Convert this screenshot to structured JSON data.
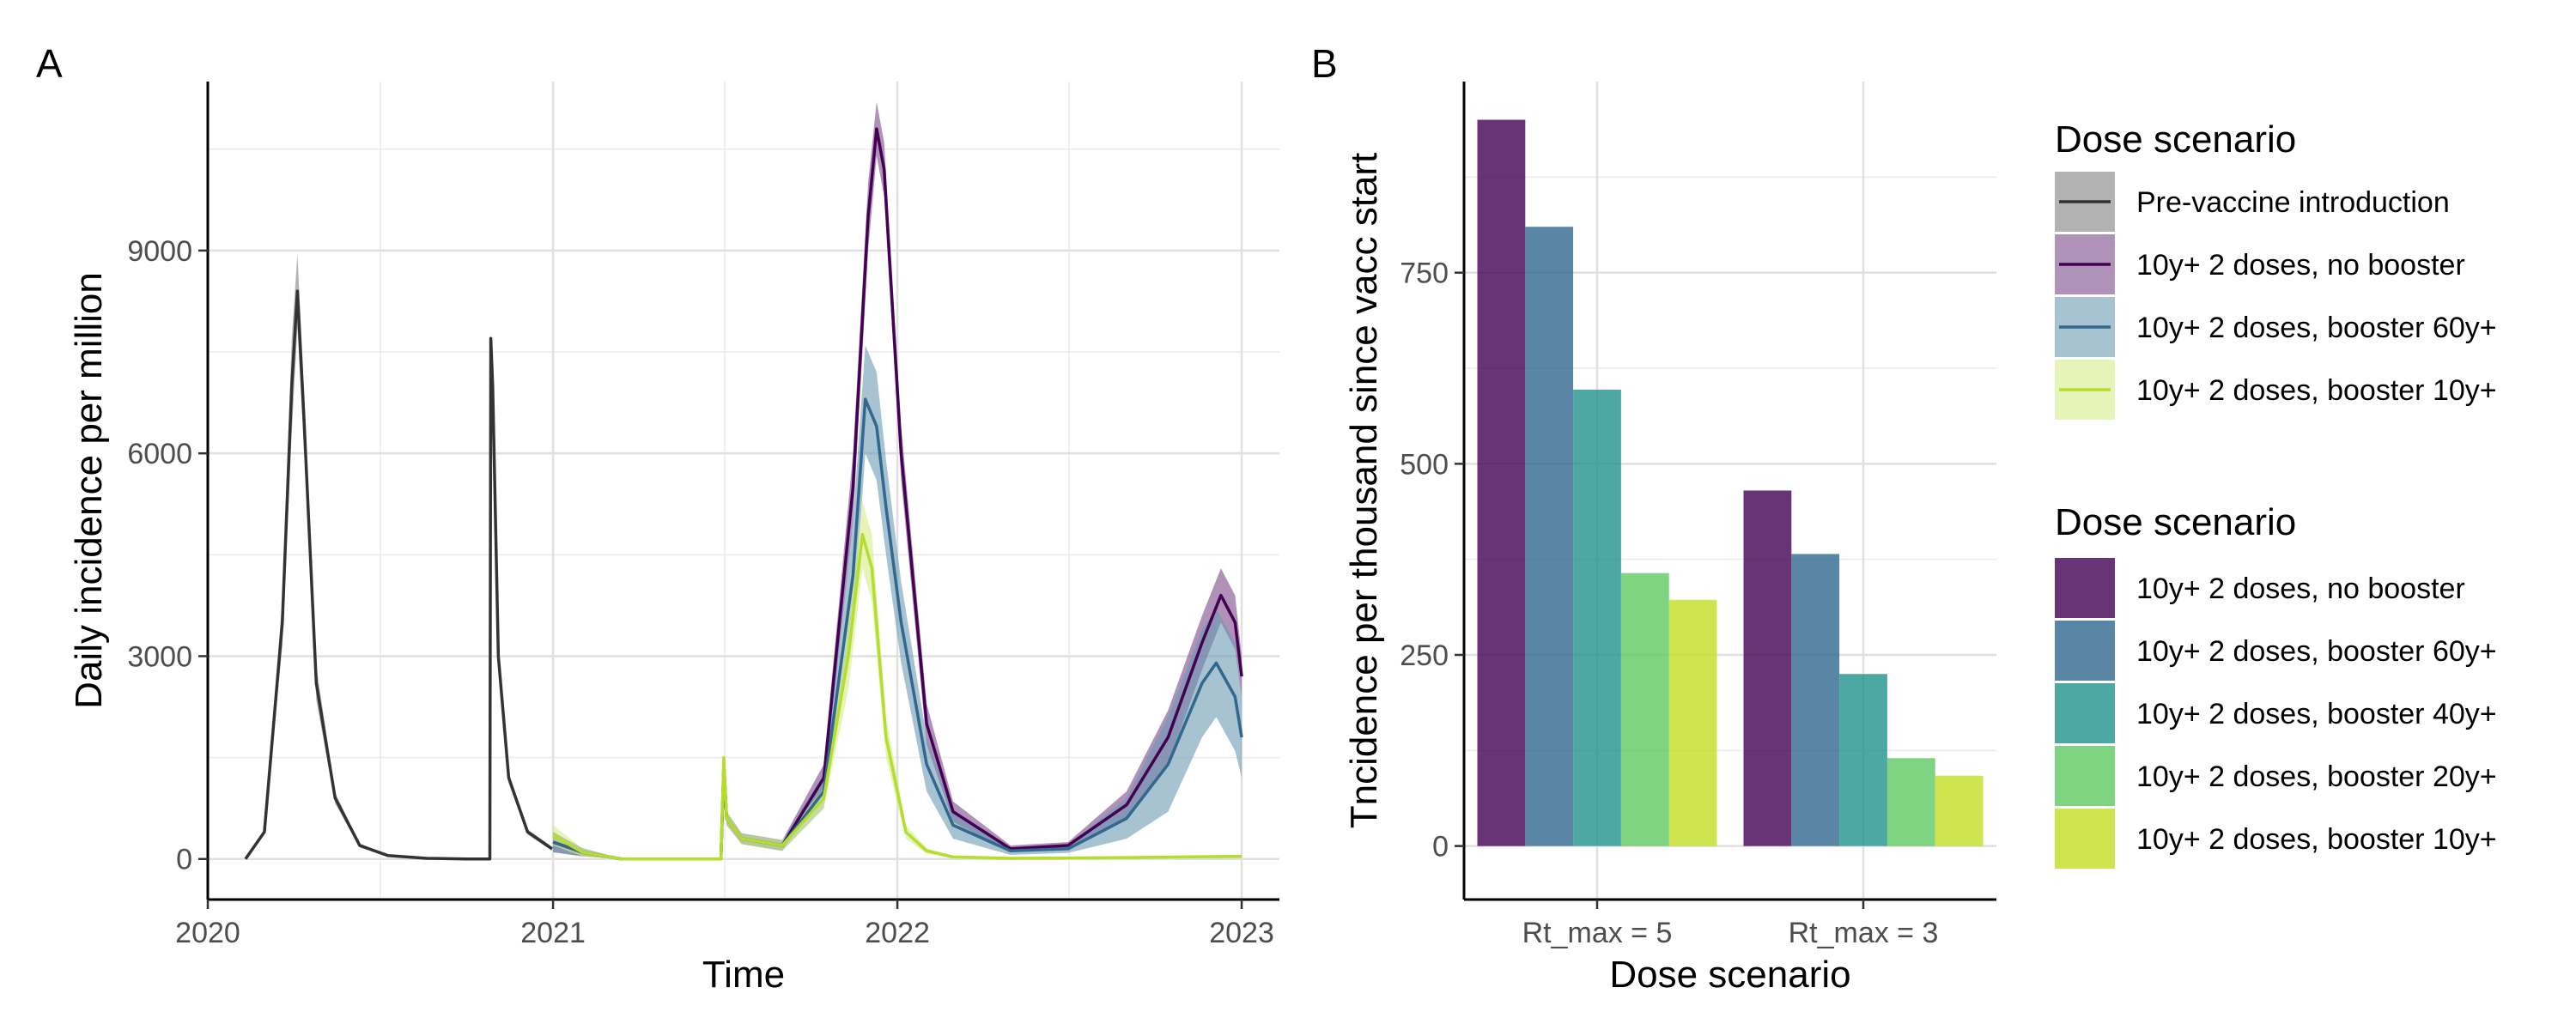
{
  "chart_data": [
    {
      "panel": "A",
      "type": "line",
      "xlabel": "Time",
      "ylabel": "Daily incidence per million",
      "xlim": [
        "2020-01-01",
        "2023-02-10"
      ],
      "ylim": [
        -600,
        11500
      ],
      "x_ticks": [
        "2020",
        "2021",
        "2022",
        "2023"
      ],
      "y_ticks": [
        0,
        3000,
        6000,
        9000
      ],
      "grid": true,
      "legend": {
        "title": "Dose scenario",
        "placement": "right",
        "entries": [
          "Pre-vaccine introduction",
          "10y+ 2 doses, no booster",
          "10y+ 2 doses, booster 60y+",
          "10y+ 2 doses, booster 10y+"
        ]
      },
      "series": [
        {
          "name": "Pre-vaccine introduction",
          "color": "#333333",
          "band_color": "#808080",
          "x": [
            "2020-02-10",
            "2020-03-01",
            "2020-03-20",
            "2020-03-30",
            "2020-04-05",
            "2020-04-12",
            "2020-04-25",
            "2020-05-15",
            "2020-06-10",
            "2020-07-10",
            "2020-08-20",
            "2020-10-01",
            "2020-10-26",
            "2020-10-27",
            "2020-10-29",
            "2020-11-04",
            "2020-11-15",
            "2020-12-05",
            "2020-12-31"
          ],
          "y": [
            0,
            400,
            3500,
            7000,
            8400,
            6500,
            2600,
            900,
            200,
            50,
            10,
            0,
            0,
            7700,
            7000,
            3000,
            1200,
            400,
            150
          ],
          "band": [
            0,
            0,
            350,
            700,
            550,
            450,
            250,
            80,
            30,
            10,
            0,
            0,
            0,
            100,
            200,
            200,
            80,
            40,
            30
          ]
        },
        {
          "name": "10y+ 2 doses, no booster",
          "color": "#440154",
          "band_color": "#7b4a8b",
          "x": [
            "2021-01-01",
            "2021-02-01",
            "2021-03-15",
            "2021-06-28",
            "2021-07-01",
            "2021-07-04",
            "2021-07-20",
            "2021-09-01",
            "2021-10-15",
            "2021-11-15",
            "2021-12-01",
            "2021-12-10",
            "2021-12-18",
            "2022-01-05",
            "2022-02-01",
            "2022-03-01",
            "2022-05-01",
            "2022-07-01",
            "2022-09-01",
            "2022-10-15",
            "2022-11-20",
            "2022-12-10",
            "2022-12-25",
            "2023-01-01"
          ],
          "y": [
            250,
            100,
            0,
            0,
            1400,
            600,
            300,
            200,
            1200,
            5500,
            9500,
            10800,
            10200,
            6000,
            2000,
            700,
            150,
            200,
            800,
            1800,
            3200,
            3900,
            3500,
            2700
          ],
          "band": [
            150,
            60,
            0,
            0,
            100,
            100,
            80,
            80,
            200,
            500,
            500,
            400,
            400,
            400,
            300,
            150,
            50,
            50,
            200,
            400,
            400,
            400,
            400,
            300
          ]
        },
        {
          "name": "10y+ 2 doses, booster 60y+",
          "color": "#31688e",
          "band_color": "#6d99b3",
          "x": [
            "2021-01-01",
            "2021-02-01",
            "2021-03-15",
            "2021-06-28",
            "2021-07-01",
            "2021-07-04",
            "2021-07-20",
            "2021-09-01",
            "2021-10-15",
            "2021-11-15",
            "2021-11-28",
            "2021-12-10",
            "2021-12-20",
            "2022-01-05",
            "2022-02-01",
            "2022-03-01",
            "2022-05-01",
            "2022-07-01",
            "2022-09-01",
            "2022-10-15",
            "2022-11-20",
            "2022-12-05",
            "2022-12-25",
            "2023-01-01"
          ],
          "y": [
            250,
            100,
            0,
            0,
            1400,
            600,
            300,
            200,
            1000,
            4200,
            6800,
            6400,
            5200,
            3500,
            1400,
            500,
            120,
            150,
            600,
            1400,
            2600,
            2900,
            2400,
            1800
          ],
          "band": [
            150,
            60,
            0,
            0,
            100,
            100,
            80,
            80,
            250,
            800,
            800,
            800,
            700,
            600,
            400,
            200,
            60,
            60,
            300,
            700,
            800,
            800,
            800,
            600
          ]
        },
        {
          "name": "10y+ 2 doses, booster 10y+",
          "color": "#b5de2b",
          "band_color": "#d6eb8a",
          "x": [
            "2021-01-01",
            "2021-02-01",
            "2021-03-15",
            "2021-06-28",
            "2021-07-01",
            "2021-07-04",
            "2021-07-20",
            "2021-09-01",
            "2021-10-15",
            "2021-11-10",
            "2021-11-25",
            "2021-12-05",
            "2021-12-20",
            "2022-01-10",
            "2022-02-01",
            "2022-03-01",
            "2022-05-01",
            "2022-09-01",
            "2023-01-01"
          ],
          "y": [
            350,
            100,
            0,
            0,
            1500,
            600,
            300,
            200,
            900,
            3000,
            4800,
            4300,
            1800,
            400,
            120,
            30,
            10,
            20,
            40
          ],
          "band": [
            150,
            60,
            0,
            0,
            100,
            100,
            80,
            80,
            150,
            500,
            500,
            500,
            300,
            100,
            40,
            10,
            5,
            10,
            10
          ]
        }
      ]
    },
    {
      "panel": "B",
      "type": "bar",
      "xlabel": "Dose scenario",
      "ylabel": "Tncidence per thousand since vacc start",
      "categories": [
        "Rt_max = 5",
        "Rt_max = 3"
      ],
      "ylim": [
        -70,
        1000
      ],
      "y_ticks": [
        0,
        250,
        500,
        750
      ],
      "grid": true,
      "legend": {
        "title": "Dose scenario",
        "placement": "right",
        "entries": [
          "10y+ 2 doses, no booster",
          "10y+ 2 doses, booster 60y+",
          "10y+ 2 doses, booster 40y+",
          "10y+ 2 doses, booster 20y+",
          "10y+ 2 doses, booster 10y+"
        ]
      },
      "series": [
        {
          "name": "10y+ 2 doses, no booster",
          "color": "#440154",
          "values": [
            950,
            465
          ]
        },
        {
          "name": "10y+ 2 doses, booster 60y+",
          "color": "#31688e",
          "values": [
            810,
            382
          ]
        },
        {
          "name": "10y+ 2 doses, booster 40y+",
          "color": "#21918c",
          "values": [
            597,
            225
          ]
        },
        {
          "name": "10y+ 2 doses, booster 20y+",
          "color": "#5ec962",
          "values": [
            357,
            115
          ]
        },
        {
          "name": "10y+ 2 doses, booster 10y+",
          "color": "#c2df23",
          "values": [
            322,
            92
          ]
        }
      ]
    }
  ]
}
